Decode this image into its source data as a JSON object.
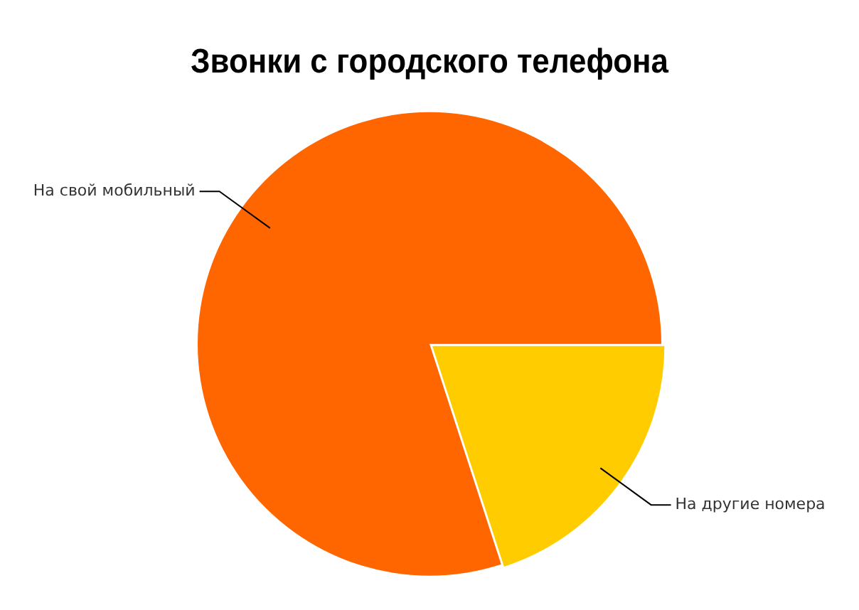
{
  "chart_data": {
    "type": "pie",
    "title": "Звонки с городского телефона",
    "categories": [
      "На свой мобильный",
      "На другие номера"
    ],
    "values": [
      80,
      20
    ],
    "colors": [
      "#ff6600",
      "#ffcc00"
    ],
    "legend": false
  }
}
